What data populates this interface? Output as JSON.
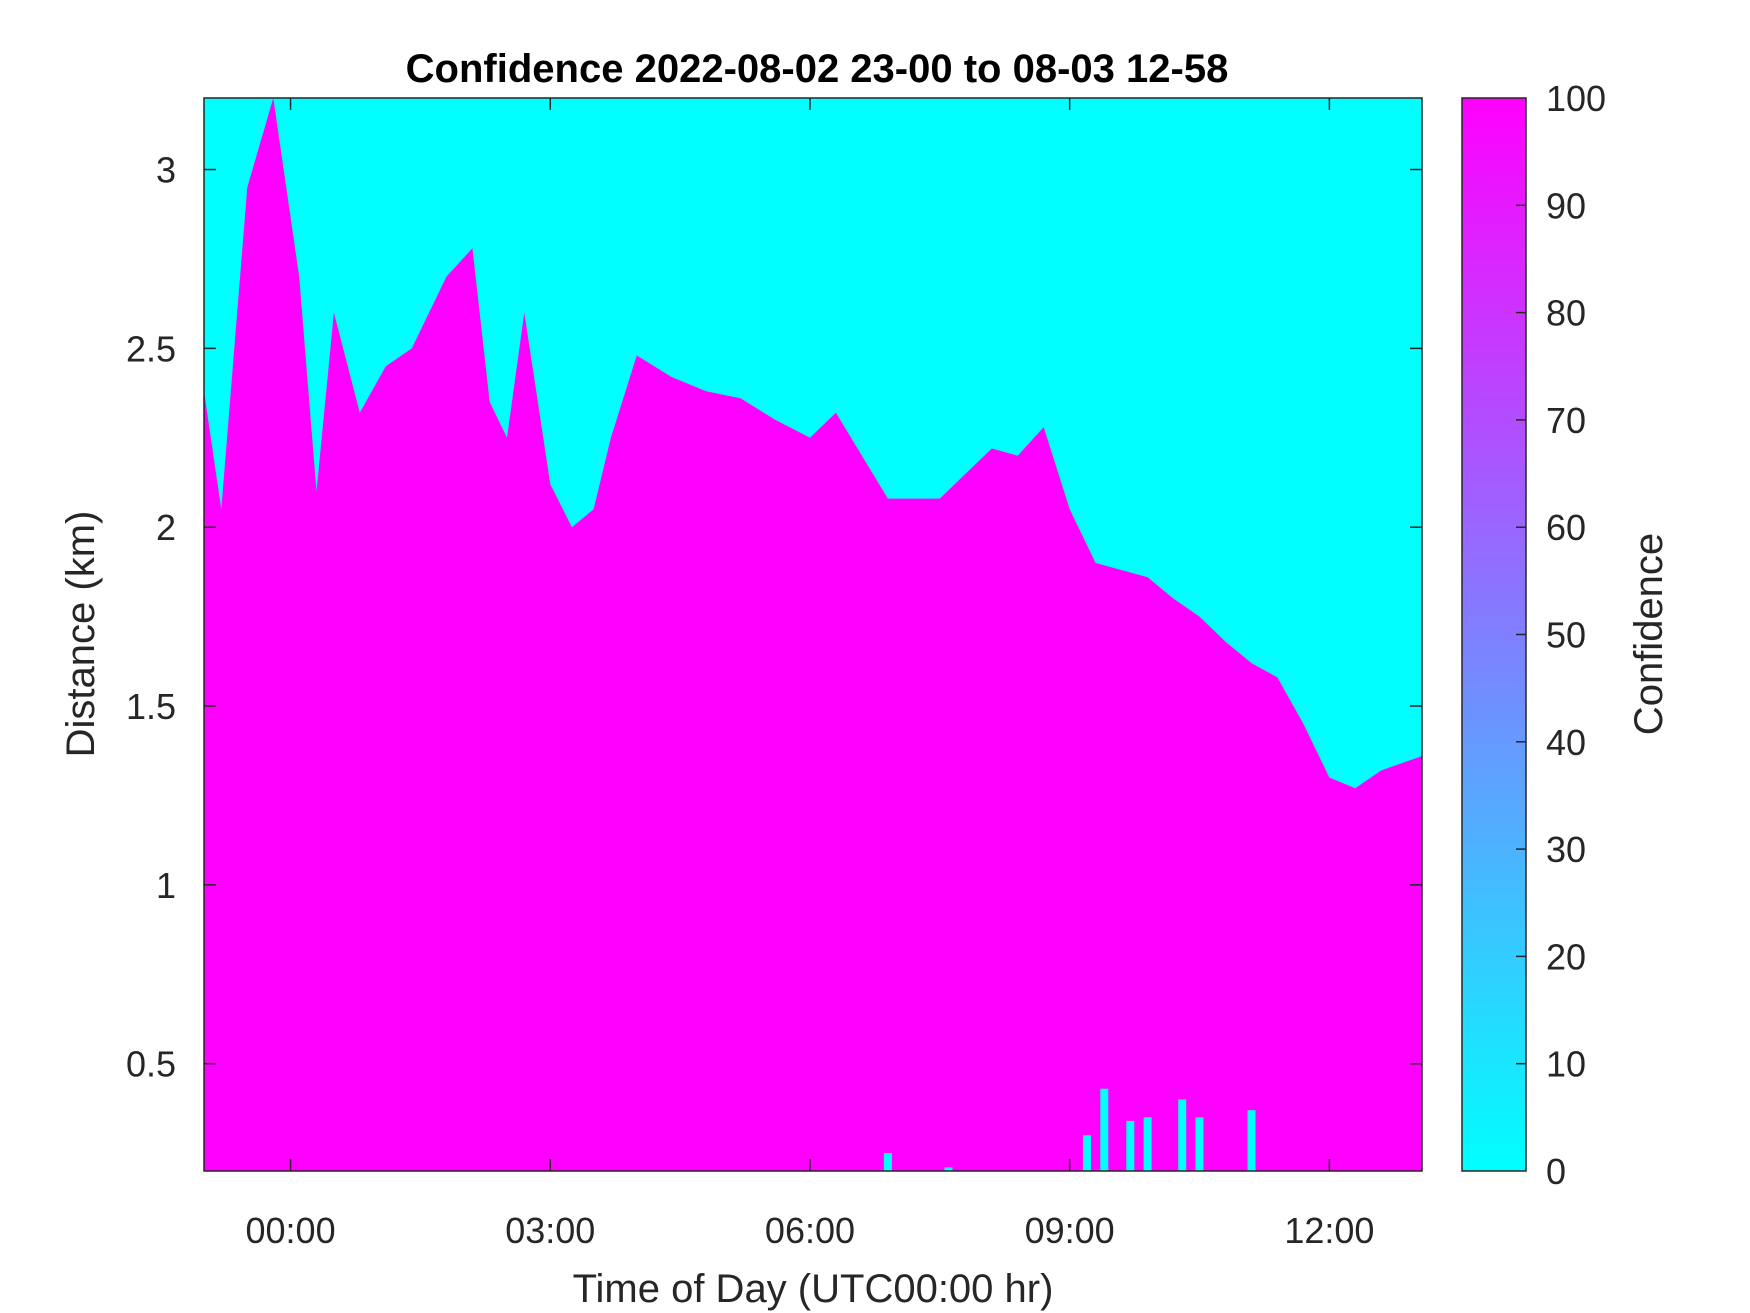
{
  "chart_data": {
    "type": "heatmap",
    "title": "Confidence 2022-08-02 23-00 to 08-03 12-58",
    "xlabel": "Time of Day (UTC00:00 hr)",
    "ylabel": "Distance (km)",
    "xlim_hours": [
      -1.0,
      13.07
    ],
    "ylim_km": [
      0.2,
      3.2
    ],
    "x_ticks": [
      {
        "value": 0,
        "label": "00:00"
      },
      {
        "value": 3,
        "label": "03:00"
      },
      {
        "value": 6,
        "label": "06:00"
      },
      {
        "value": 9,
        "label": "09:00"
      },
      {
        "value": 12,
        "label": "12:00"
      }
    ],
    "y_ticks": [
      {
        "value": 0.5,
        "label": "0.5"
      },
      {
        "value": 1.0,
        "label": "1"
      },
      {
        "value": 1.5,
        "label": "1.5"
      },
      {
        "value": 2.0,
        "label": "2"
      },
      {
        "value": 2.5,
        "label": "2.5"
      },
      {
        "value": 3.0,
        "label": "3"
      }
    ],
    "colorbar": {
      "label": "Confidence",
      "min": 0,
      "max": 100,
      "low_color": "#00ffff",
      "high_color": "#ff00ff",
      "ticks": [
        "0",
        "10",
        "20",
        "30",
        "40",
        "50",
        "60",
        "70",
        "80",
        "90",
        "100"
      ]
    },
    "values_encoding": "binary: 100 (magenta) below boundary, 0 (cyan) above",
    "boundary_top_km": [
      {
        "x": -1.0,
        "y": 2.38
      },
      {
        "x": -0.8,
        "y": 2.05
      },
      {
        "x": -0.5,
        "y": 2.95
      },
      {
        "x": -0.2,
        "y": 3.2
      },
      {
        "x": 0.1,
        "y": 2.7
      },
      {
        "x": 0.3,
        "y": 2.1
      },
      {
        "x": 0.5,
        "y": 2.6
      },
      {
        "x": 0.8,
        "y": 2.32
      },
      {
        "x": 1.1,
        "y": 2.45
      },
      {
        "x": 1.4,
        "y": 2.5
      },
      {
        "x": 1.8,
        "y": 2.7
      },
      {
        "x": 2.1,
        "y": 2.78
      },
      {
        "x": 2.3,
        "y": 2.35
      },
      {
        "x": 2.5,
        "y": 2.25
      },
      {
        "x": 2.7,
        "y": 2.6
      },
      {
        "x": 3.0,
        "y": 2.12
      },
      {
        "x": 3.25,
        "y": 2.0
      },
      {
        "x": 3.5,
        "y": 2.05
      },
      {
        "x": 3.7,
        "y": 2.25
      },
      {
        "x": 4.0,
        "y": 2.48
      },
      {
        "x": 4.4,
        "y": 2.42
      },
      {
        "x": 4.8,
        "y": 2.38
      },
      {
        "x": 5.2,
        "y": 2.36
      },
      {
        "x": 5.6,
        "y": 2.3
      },
      {
        "x": 6.0,
        "y": 2.25
      },
      {
        "x": 6.3,
        "y": 2.32
      },
      {
        "x": 6.6,
        "y": 2.2
      },
      {
        "x": 6.9,
        "y": 2.08
      },
      {
        "x": 7.2,
        "y": 2.08
      },
      {
        "x": 7.5,
        "y": 2.08
      },
      {
        "x": 7.8,
        "y": 2.15
      },
      {
        "x": 8.1,
        "y": 2.22
      },
      {
        "x": 8.4,
        "y": 2.2
      },
      {
        "x": 8.7,
        "y": 2.28
      },
      {
        "x": 9.0,
        "y": 2.05
      },
      {
        "x": 9.3,
        "y": 1.9
      },
      {
        "x": 9.6,
        "y": 1.88
      },
      {
        "x": 9.9,
        "y": 1.86
      },
      {
        "x": 10.2,
        "y": 1.8
      },
      {
        "x": 10.5,
        "y": 1.75
      },
      {
        "x": 10.8,
        "y": 1.68
      },
      {
        "x": 11.1,
        "y": 1.62
      },
      {
        "x": 11.4,
        "y": 1.58
      },
      {
        "x": 11.7,
        "y": 1.45
      },
      {
        "x": 12.0,
        "y": 1.3
      },
      {
        "x": 12.3,
        "y": 1.27
      },
      {
        "x": 12.6,
        "y": 1.32
      },
      {
        "x": 13.07,
        "y": 1.36
      }
    ],
    "boundary_bottom_km": [
      {
        "x": 6.8,
        "y": 0.2
      },
      {
        "x": 6.9,
        "y": 0.25
      },
      {
        "x": 7.6,
        "y": 0.21
      },
      {
        "x": 9.2,
        "y": 0.3
      },
      {
        "x": 9.4,
        "y": 0.43
      },
      {
        "x": 9.7,
        "y": 0.34
      },
      {
        "x": 9.9,
        "y": 0.35
      },
      {
        "x": 10.3,
        "y": 0.4
      },
      {
        "x": 10.5,
        "y": 0.35
      },
      {
        "x": 11.1,
        "y": 0.37
      }
    ]
  }
}
